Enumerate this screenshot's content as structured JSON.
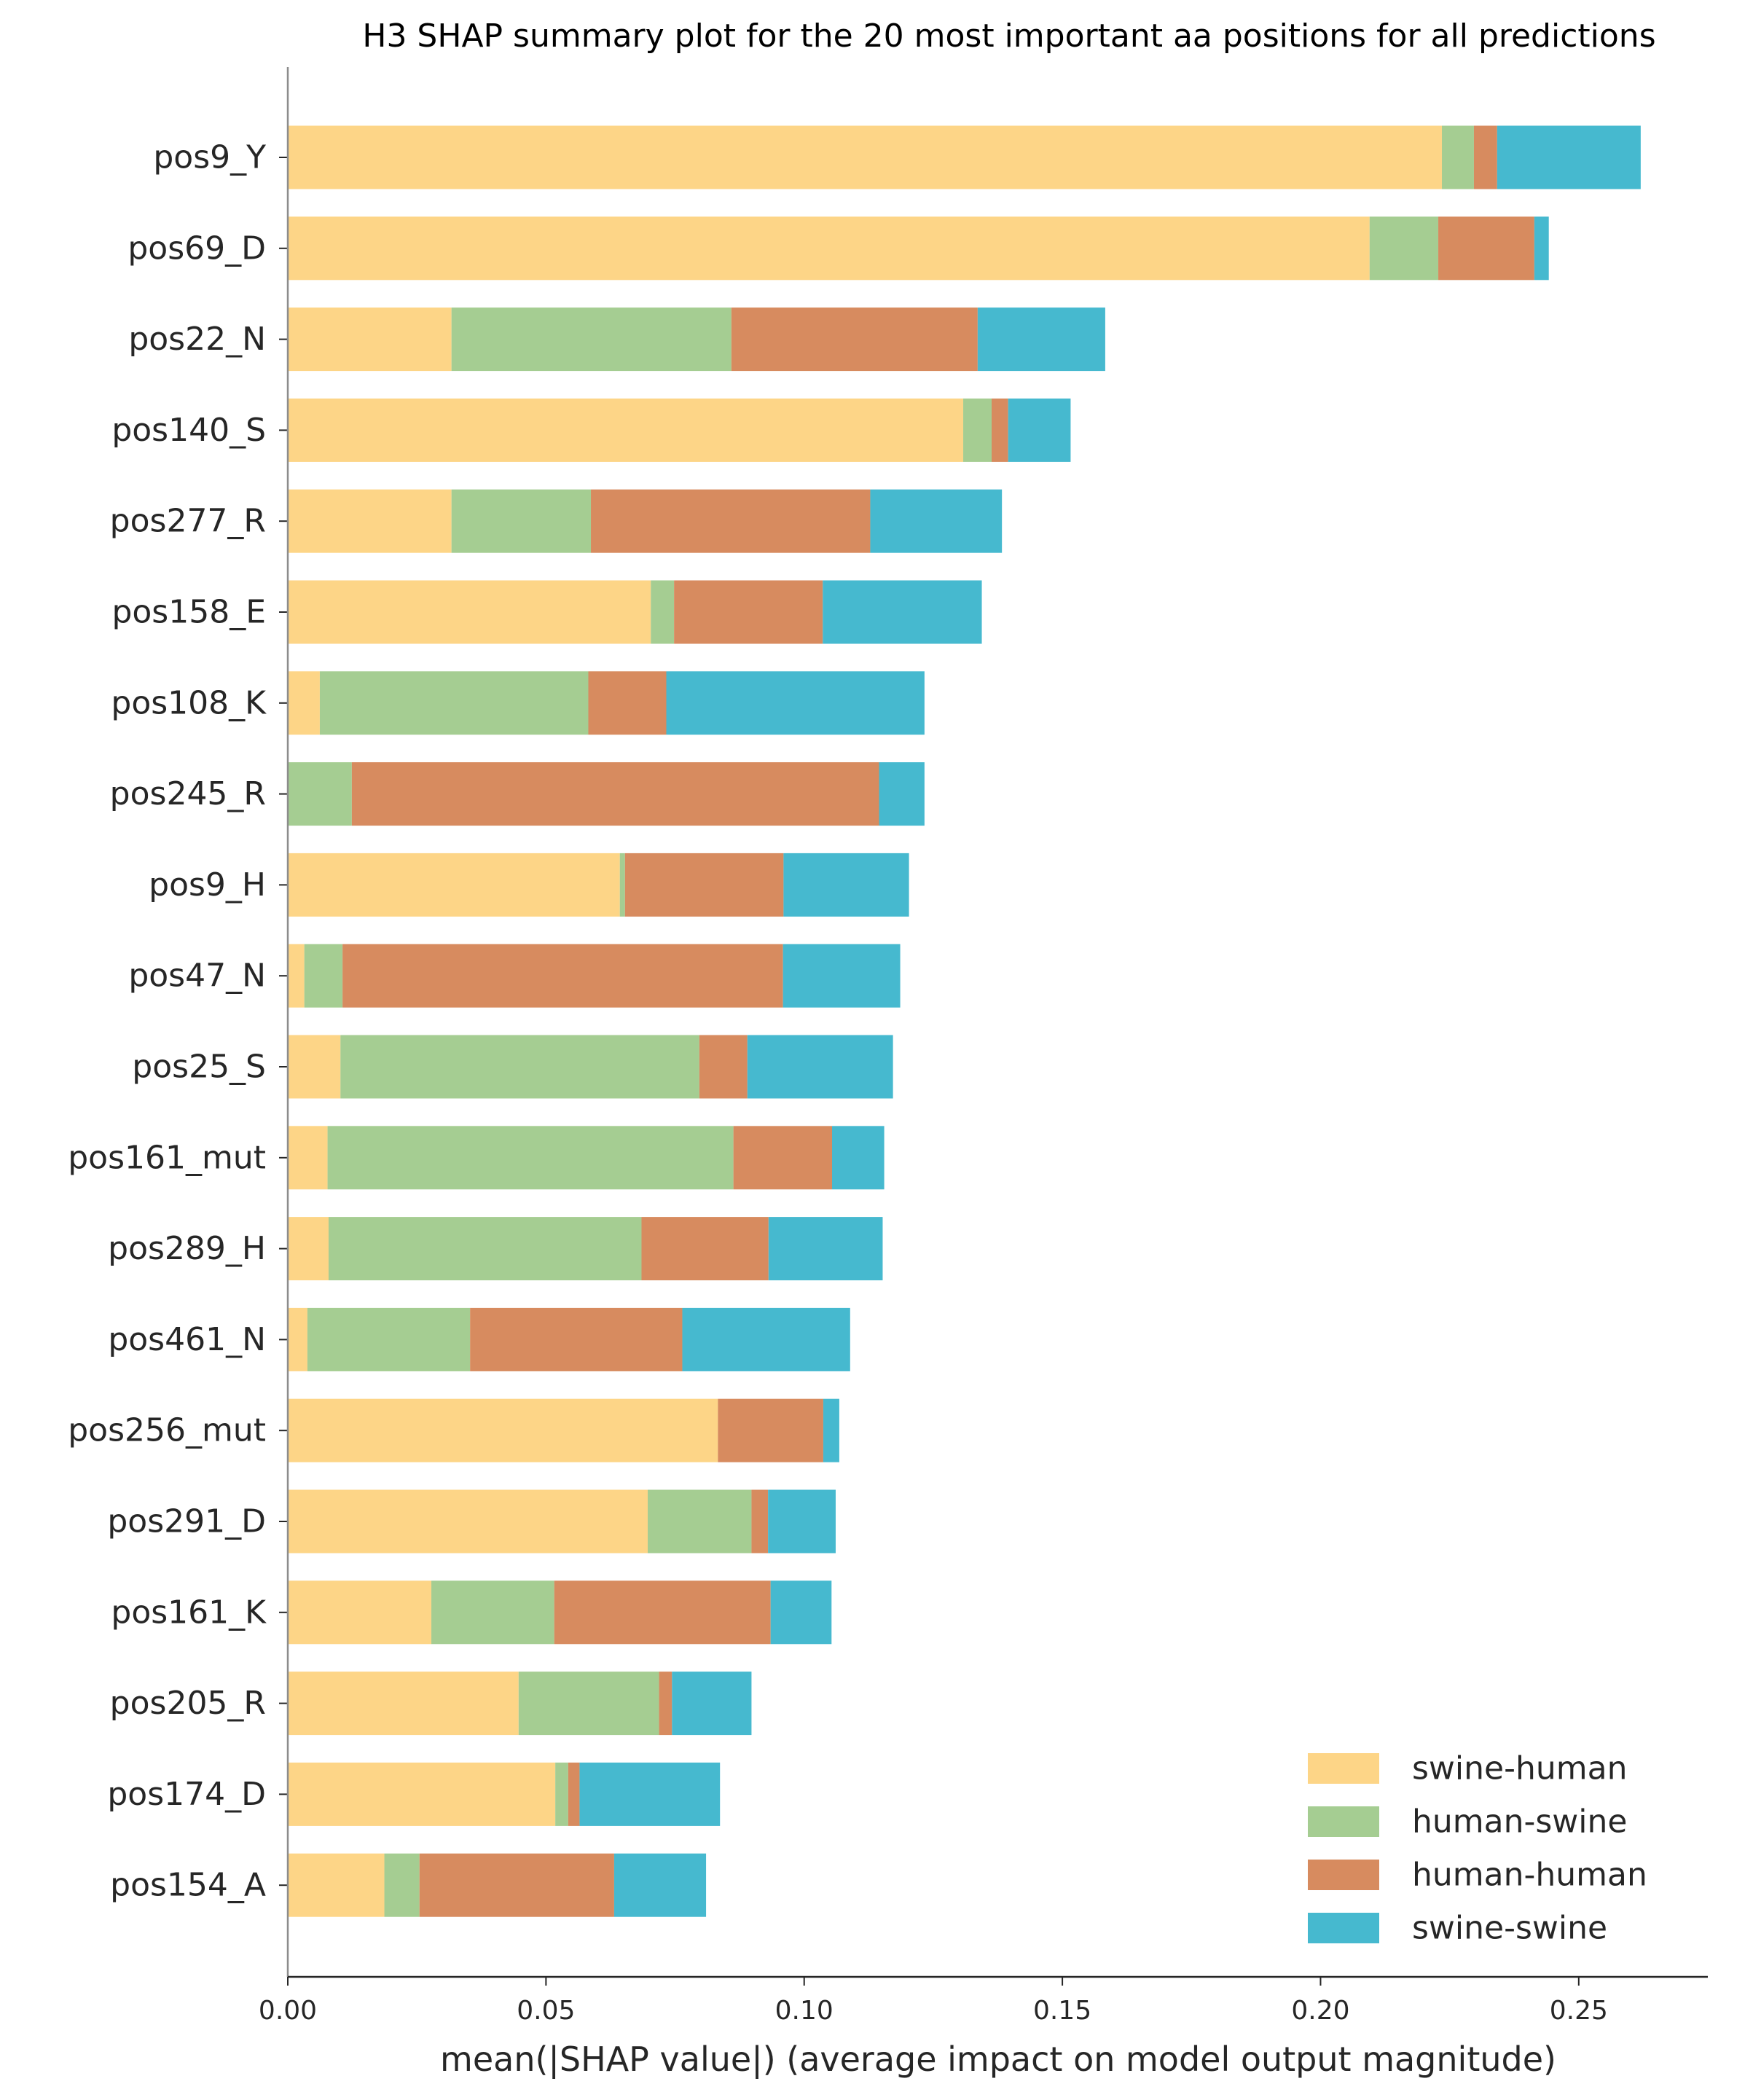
{
  "chart_data": {
    "type": "bar",
    "orientation": "horizontal",
    "stacked": true,
    "title": "H3 SHAP summary plot for the 20 most important aa positions for all predictions",
    "xlabel": "mean(|SHAP value|) (average impact on model output magnitude)",
    "ylabel": "",
    "xlim": [
      0,
      0.275
    ],
    "xticks": [
      0.0,
      0.05,
      0.1,
      0.15,
      0.2,
      0.25
    ],
    "xtick_labels": [
      "0.00",
      "0.05",
      "0.10",
      "0.15",
      "0.20",
      "0.25"
    ],
    "grid": false,
    "legend_position": "bottom-right",
    "categories": [
      "pos9_Y",
      "pos69_D",
      "pos22_N",
      "pos140_S",
      "pos277_R",
      "pos158_E",
      "pos108_K",
      "pos245_R",
      "pos9_H",
      "pos47_N",
      "pos25_S",
      "pos161_mut",
      "pos289_H",
      "pos461_N",
      "pos256_mut",
      "pos291_D",
      "pos161_K",
      "pos205_R",
      "pos174_D",
      "pos154_A"
    ],
    "series": [
      {
        "name": "swine-human",
        "color": "#fdd587",
        "values": [
          0.2235,
          0.2095,
          0.0317,
          0.1308,
          0.0317,
          0.0703,
          0.0062,
          0.0,
          0.0643,
          0.0032,
          0.0102,
          0.0077,
          0.0079,
          0.0038,
          0.0833,
          0.0697,
          0.0278,
          0.0447,
          0.0518,
          0.0187
        ]
      },
      {
        "name": "human-swine",
        "color": "#a5cd92",
        "values": [
          0.0062,
          0.0133,
          0.0542,
          0.0055,
          0.027,
          0.0045,
          0.052,
          0.0124,
          0.001,
          0.0074,
          0.0695,
          0.0786,
          0.0606,
          0.0315,
          0.0,
          0.0201,
          0.0238,
          0.0272,
          0.0025,
          0.0068
        ]
      },
      {
        "name": "human-human",
        "color": "#d78b5f",
        "values": [
          0.0045,
          0.0186,
          0.0477,
          0.0032,
          0.0541,
          0.0288,
          0.0151,
          0.1021,
          0.0307,
          0.0853,
          0.0093,
          0.0191,
          0.0246,
          0.0411,
          0.0204,
          0.0032,
          0.0419,
          0.0025,
          0.0022,
          0.0377
        ]
      },
      {
        "name": "swine-swine",
        "color": "#46b9cf",
        "values": [
          0.0278,
          0.0028,
          0.0247,
          0.0121,
          0.0255,
          0.0308,
          0.05,
          0.0088,
          0.0243,
          0.0227,
          0.0282,
          0.0101,
          0.0221,
          0.0325,
          0.0031,
          0.0131,
          0.0118,
          0.0154,
          0.0272,
          0.0178
        ]
      }
    ]
  }
}
